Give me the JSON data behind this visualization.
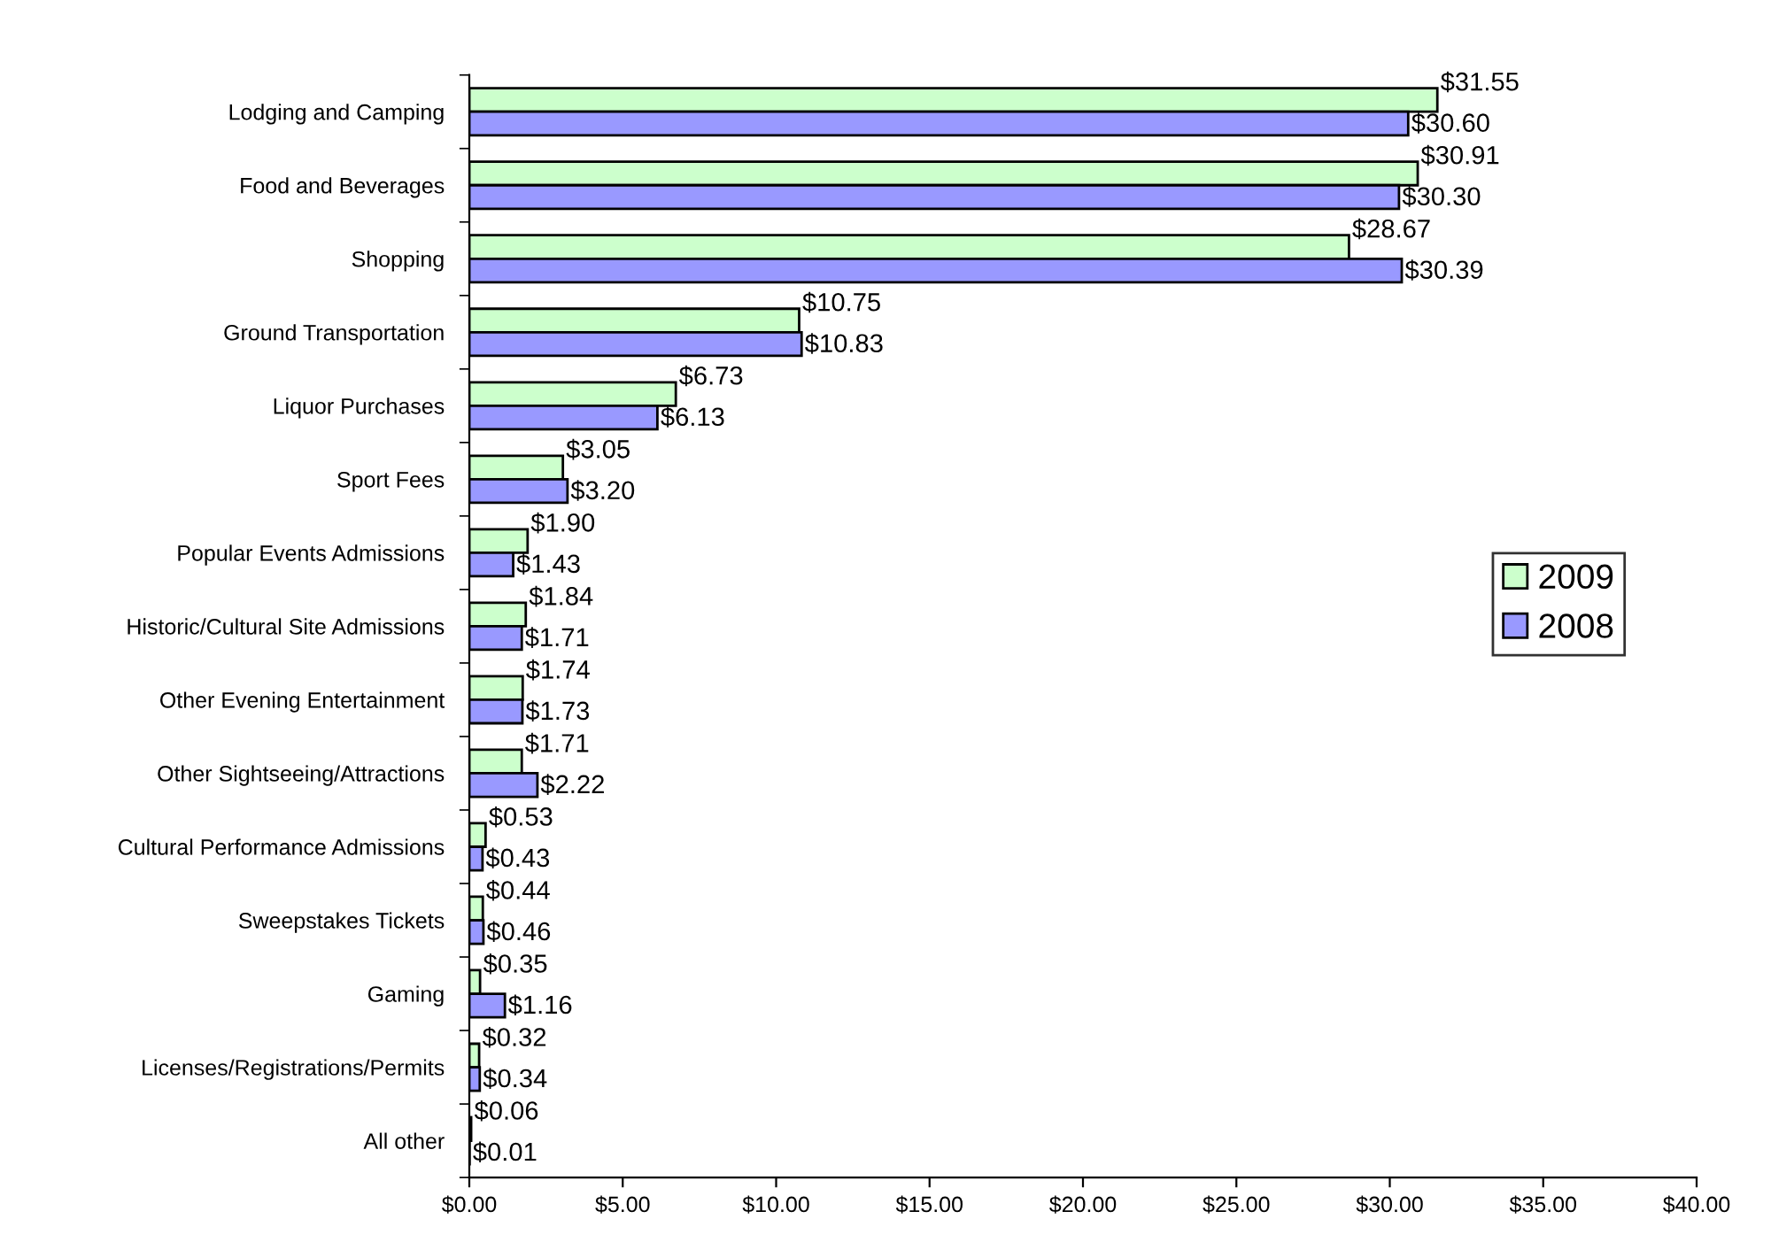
{
  "chart_data": {
    "type": "bar",
    "orientation": "horizontal",
    "categories": [
      "Lodging and Camping",
      "Food and Beverages",
      "Shopping",
      "Ground Transportation",
      "Liquor Purchases",
      "Sport Fees",
      "Popular Events Admissions",
      "Historic/Cultural Site Admissions",
      "Other Evening Entertainment",
      "Other Sightseeing/Attractions",
      "Cultural Performance Admissions",
      "Sweepstakes Tickets",
      "Gaming",
      "Licenses/Registrations/Permits",
      "All other"
    ],
    "series": [
      {
        "name": "2009",
        "color": "#ccffcc",
        "values": [
          31.55,
          30.91,
          28.67,
          10.75,
          6.73,
          3.05,
          1.9,
          1.84,
          1.74,
          1.71,
          0.53,
          0.44,
          0.35,
          0.32,
          0.06
        ],
        "value_labels": [
          "$31.55",
          "$30.91",
          "$28.67",
          "$10.75",
          "$6.73",
          "$3.05",
          "$1.90",
          "$1.84",
          "$1.74",
          "$1.71",
          "$0.53",
          "$0.44",
          "$0.35",
          "$0.32",
          "$0.06"
        ]
      },
      {
        "name": "2008",
        "color": "#9999ff",
        "values": [
          30.6,
          30.3,
          30.39,
          10.83,
          6.13,
          3.2,
          1.43,
          1.71,
          1.73,
          2.22,
          0.43,
          0.46,
          1.16,
          0.34,
          0.01
        ],
        "value_labels": [
          "$30.60",
          "$30.30",
          "$30.39",
          "$10.83",
          "$6.13",
          "$3.20",
          "$1.43",
          "$1.71",
          "$1.73",
          "$2.22",
          "$0.43",
          "$0.46",
          "$1.16",
          "$0.34",
          "$0.01"
        ]
      }
    ],
    "xlim": [
      0,
      40
    ],
    "xticks": [
      {
        "value": 0,
        "label": "$0.00"
      },
      {
        "value": 5,
        "label": "$5.00"
      },
      {
        "value": 10,
        "label": "$10.00"
      },
      {
        "value": 15,
        "label": "$15.00"
      },
      {
        "value": 20,
        "label": "$20.00"
      },
      {
        "value": 25,
        "label": "$25.00"
      },
      {
        "value": 30,
        "label": "$30.00"
      },
      {
        "value": 35,
        "label": "$35.00"
      },
      {
        "value": 40,
        "label": "$40.00"
      }
    ],
    "grid": false,
    "legend": "right"
  }
}
